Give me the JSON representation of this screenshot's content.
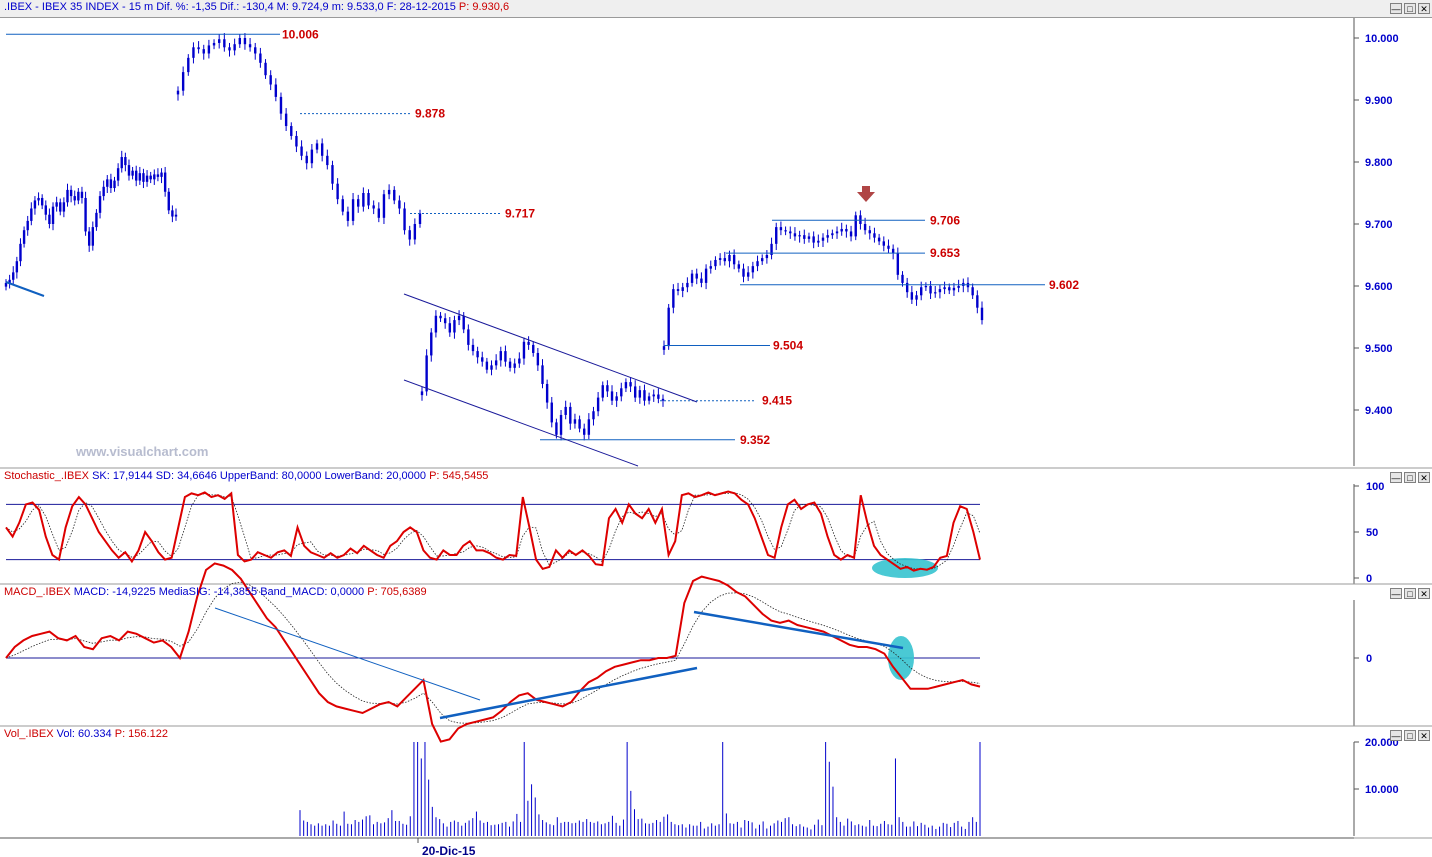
{
  "header": {
    "symbol": ".IBEX - IBEX 35 INDEX -",
    "stats": "15 m  Dif. %: -1,35  Dif.: -130,4  M: 9.724,9  m: 9.533,0  F: 28-12-2015",
    "price": "P: 9.930,6"
  },
  "watermark": "www.visualchart.com",
  "window_buttons": [
    "—",
    "□",
    "✕"
  ],
  "colors": {
    "candle": "#0000cc",
    "level_text": "#cc0000",
    "axis_text": "#0000cc",
    "indicator_main": "#dd0000",
    "trendline": "#1060c0",
    "highlight": "#36c3cf"
  },
  "panels": {
    "stochastic": {
      "name": "Stochastic_.IBEX",
      "sk": "SK: 17,9144",
      "sd": "SD: 34,6646",
      "upper": "UpperBand: 80,0000",
      "lower": "LowerBand: 20,0000",
      "p": "P: 545,5455"
    },
    "macd": {
      "name": "MACD_.IBEX",
      "macd": "MACD: -14,9225",
      "signal": "MediaSIG: -14,3855",
      "band": "Band_MACD: 0,0000",
      "p": "P: 705,6389"
    },
    "volume": {
      "name": "Vol_.IBEX",
      "vol": "Vol: 60.334",
      "p": "P: 156.122"
    }
  },
  "chart_data": [
    {
      "type": "candlestick",
      "title": "",
      "ylim": [
        9320,
        10035
      ],
      "yticks": [
        "10.000",
        "9.900",
        "9.800",
        "9.700",
        "9.600",
        "9.500",
        "9.400"
      ],
      "ytick_values": [
        10000,
        9900,
        9800,
        9700,
        9600,
        9500,
        9400
      ],
      "xlabel_date": "20-Dic-15",
      "close_path": [
        9605,
        9610,
        9622,
        9640,
        9668,
        9690,
        9705,
        9725,
        9738,
        9742,
        9730,
        9715,
        9700,
        9728,
        9735,
        9720,
        9735,
        9755,
        9745,
        9738,
        9752,
        9742,
        9688,
        9665,
        9695,
        9718,
        9745,
        9760,
        9772,
        9758,
        9770,
        9790,
        9808,
        9795,
        9778,
        9786,
        9770,
        9782,
        9768,
        9778,
        9772,
        9780,
        9776,
        9783,
        9752,
        9722,
        9712,
        9715,
        9915,
        9945,
        9968,
        9985,
        9982,
        9975,
        9988,
        9992,
        9998,
        9985,
        9980,
        9990,
        10000,
        9990,
        9985,
        9975,
        9960,
        9940,
        9925,
        9905,
        9878,
        9858,
        9842,
        9825,
        9810,
        9798,
        9820,
        9830,
        9810,
        9795,
        9765,
        9740,
        9720,
        9705,
        9740,
        9728,
        9750,
        9730,
        9725,
        9710,
        9748,
        9755,
        9738,
        9725,
        9690,
        9675,
        9700,
        9717,
        9430,
        9488,
        9525,
        9552,
        9548,
        9540,
        9525,
        9545,
        9552,
        9530,
        9505,
        9495,
        9485,
        9478,
        9465,
        9472,
        9480,
        9495,
        9478,
        9468,
        9475,
        9483,
        9510,
        9505,
        9492,
        9472,
        9442,
        9412,
        9380,
        9360,
        9392,
        9405,
        9378,
        9385,
        9370,
        9360,
        9385,
        9398,
        9420,
        9440,
        9430,
        9415,
        9422,
        9435,
        9445,
        9438,
        9420,
        9432,
        9415,
        9422,
        9425,
        9418,
        9415,
        9503,
        9565,
        9595,
        9592,
        9598,
        9605,
        9620,
        9612,
        9605,
        9628,
        9632,
        9642,
        9645,
        9640,
        9650,
        9635,
        9628,
        9615,
        9622,
        9632,
        9640,
        9645,
        9650,
        9668,
        9695,
        9690,
        9688,
        9685,
        9680,
        9682,
        9676,
        9680,
        9670,
        9673,
        9678,
        9682,
        9685,
        9688,
        9692,
        9688,
        9680,
        9714,
        9700,
        9690,
        9685,
        9678,
        9672,
        9665,
        9660,
        9653,
        9618,
        9605,
        9590,
        9578,
        9585,
        9598,
        9600,
        9588,
        9590,
        9595,
        9598,
        9593,
        9597,
        9600,
        9605,
        9598,
        9585,
        9565,
        9545
      ],
      "segments": [
        [
          0,
          48
        ],
        [
          48,
          96
        ],
        [
          96,
          149
        ],
        [
          149,
          218
        ]
      ],
      "levels": [
        {
          "label": "10.006",
          "value": 10006,
          "style": "solid"
        },
        {
          "label": "9.878",
          "value": 9878,
          "style": "dotted"
        },
        {
          "label": "9.717",
          "value": 9717,
          "style": "dotted"
        },
        {
          "label": "9.706",
          "value": 9706,
          "style": "solid"
        },
        {
          "label": "9.653",
          "value": 9653,
          "style": "solid"
        },
        {
          "label": "9.602",
          "value": 9602,
          "style": "solid"
        },
        {
          "label": "9.504",
          "value": 9504,
          "style": "solid"
        },
        {
          "label": "9.415",
          "value": 9415,
          "style": "dotted"
        },
        {
          "label": "9.352",
          "value": 9352,
          "style": "solid"
        }
      ],
      "annotations": [
        "down arrow above 9.706 peak",
        "descending channel lines",
        "short trendline at left low"
      ]
    },
    {
      "type": "line",
      "series_name": "Stochastic",
      "ylim": [
        0,
        100
      ],
      "yticks": [
        "100",
        "50",
        "0"
      ],
      "ytick_values": [
        100,
        50,
        0
      ],
      "bands": [
        80,
        20
      ],
      "sk": [
        55,
        45,
        60,
        80,
        82,
        74,
        45,
        25,
        20,
        55,
        78,
        88,
        80,
        65,
        50,
        40,
        30,
        22,
        28,
        18,
        30,
        50,
        40,
        28,
        20,
        22,
        55,
        88,
        92,
        90,
        93,
        88,
        90,
        86,
        92,
        25,
        18,
        20,
        28,
        25,
        22,
        28,
        30,
        24,
        55,
        35,
        28,
        25,
        22,
        27,
        22,
        25,
        32,
        27,
        35,
        30,
        25,
        22,
        35,
        40,
        50,
        55,
        50,
        30,
        22,
        20,
        30,
        25,
        25,
        35,
        40,
        30,
        30,
        27,
        22,
        20,
        25,
        24,
        88,
        55,
        20,
        10,
        12,
        30,
        22,
        30,
        25,
        30,
        24,
        15,
        14,
        65,
        75,
        60,
        80,
        70,
        65,
        75,
        60,
        75,
        25,
        40,
        90,
        92,
        88,
        90,
        93,
        90,
        92,
        94,
        92,
        85,
        80,
        65,
        45,
        25,
        22,
        55,
        80,
        85,
        75,
        80,
        82,
        70,
        45,
        25,
        20,
        25,
        22,
        90,
        60,
        35,
        25,
        20,
        15,
        10,
        12,
        8,
        10,
        9,
        12,
        22,
        24,
        60,
        78,
        75,
        50,
        20
      ],
      "sd_smooth": 3
    },
    {
      "type": "line",
      "series_name": "MACD",
      "ylim": [
        -45,
        45
      ],
      "yticks": [
        "0"
      ],
      "ytick_values": [
        0
      ],
      "macd": [
        0,
        5,
        8,
        10,
        11,
        12,
        9,
        8,
        10,
        5,
        4,
        9,
        10,
        8,
        12,
        11,
        9,
        7,
        8,
        5,
        0,
        12,
        28,
        40,
        43,
        42,
        40,
        36,
        30,
        24,
        18,
        14,
        8,
        2,
        -4,
        -10,
        -16,
        -20,
        -22,
        -23,
        -24,
        -25,
        -23,
        -21,
        -20,
        -22,
        -18,
        -14,
        -10,
        -30,
        -38,
        -37,
        -32,
        -30,
        -29,
        -28,
        -27,
        -24,
        -20,
        -17,
        -16,
        -19,
        -20,
        -21,
        -22,
        -20,
        -15,
        -11,
        -9,
        -6,
        -4,
        -3,
        -2,
        -1,
        -1,
        0,
        0,
        1,
        25,
        35,
        37,
        36,
        35,
        33,
        30,
        28,
        24,
        20,
        17,
        16,
        17,
        15,
        14,
        13,
        12,
        10,
        8,
        6,
        5,
        5,
        4,
        2,
        -4,
        -9,
        -14,
        -14,
        -14,
        -13,
        -12,
        -11,
        -10,
        -12,
        -13
      ],
      "signal_smooth": 6
    },
    {
      "type": "bar",
      "series_name": "Volume",
      "ylim": [
        0,
        20000
      ],
      "yticks": [
        "20.000",
        "10.000"
      ],
      "ytick_values": [
        20000,
        10000
      ],
      "values": [
        5500,
        3300,
        3000,
        2500,
        2200,
        2700,
        2200,
        2500,
        2200,
        3300,
        2600,
        2200,
        5200,
        2600,
        2500,
        3400,
        3000,
        3500,
        4200,
        4400,
        2500,
        3000,
        2700,
        2900,
        3800,
        5500,
        3200,
        3200,
        2600,
        2400,
        4200,
        20000,
        20000,
        16500,
        20000,
        12000,
        6200,
        4000,
        3600,
        2700,
        2000,
        3000,
        3300,
        3000,
        2200,
        2800,
        3300,
        3800,
        5200,
        3300,
        2800,
        3000,
        2300,
        2400,
        2500,
        2800,
        3000,
        2000,
        3100,
        4700,
        3000,
        20000,
        7500,
        11000,
        8200,
        4600,
        3400,
        2900,
        2500,
        2300,
        4000,
        2800,
        3000,
        3000,
        2700,
        2800,
        3300,
        3000,
        3600,
        3000,
        2800,
        3100,
        2500,
        2700,
        3000,
        4300,
        2800,
        2200,
        3500,
        20000,
        9600,
        5700,
        3600,
        3700,
        2700,
        2600,
        2800,
        3400,
        3000,
        4100,
        4600,
        3000,
        2500,
        2300,
        2500,
        1800,
        2500,
        2200,
        2200,
        3000,
        1600,
        2000,
        2700,
        2200,
        2500,
        20000,
        4800,
        2700,
        2600,
        3000,
        1800,
        3400,
        3200,
        2900,
        1600,
        2400,
        3100,
        1600,
        2200,
        2700,
        3300,
        3000,
        3800,
        4000,
        2500,
        2100,
        2500,
        2000,
        1800,
        1400,
        2400,
        3500,
        2300,
        20000,
        15800,
        10500,
        4000,
        3000,
        2200,
        3700,
        3100,
        2300,
        2500,
        2200,
        2000,
        3400,
        2200,
        2100,
        2600,
        3200,
        2500,
        2400,
        16500,
        4000,
        3000,
        2000,
        2000,
        3100,
        2100,
        2800,
        2400,
        1800,
        2200,
        1500,
        2000,
        2800,
        2600,
        1900,
        2800,
        3200,
        2000,
        1500,
        3000,
        4000,
        3000,
        20000
      ]
    }
  ]
}
